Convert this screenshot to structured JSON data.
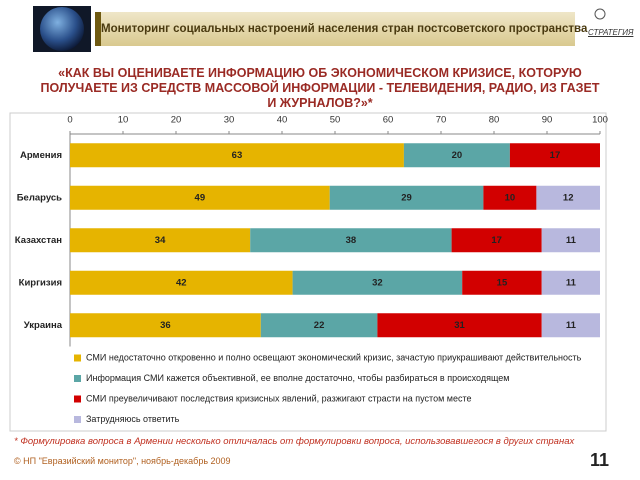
{
  "header": {
    "title": "Мониторинг социальных настроений населения стран постсоветского пространства",
    "logo": "СТРАТЕГИЯ"
  },
  "chart_data": {
    "type": "stacked-bar",
    "orientation": "horizontal",
    "title": "«КАК ВЫ ОЦЕНИВАЕТЕ ИНФОРМАЦИЮ ОБ ЭКОНОМИЧЕСКОМ КРИЗИСЕ, КОТОРУЮ ПОЛУЧАЕТЕ ИЗ СРЕДСТВ МАССОВОЙ ИНФОРМАЦИИ - ТЕЛЕВИДЕНИЯ, РАДИО, ИЗ ГАЗЕТ И ЖУРНАЛОВ?»*",
    "categories": [
      "Армения",
      "Беларусь",
      "Казахстан",
      "Киргизия",
      "Украина"
    ],
    "series": [
      {
        "name": "СМИ недостаточно откровенно и полно освещают экономический кризис, зачастую приукрашивают действительность",
        "color": "#e6b400",
        "values": [
          63,
          49,
          34,
          42,
          36
        ]
      },
      {
        "name": "Информация СМИ кажется объективной, ее вполне достаточно, чтобы разбираться в происходящем",
        "color": "#5ba6a6",
        "values": [
          20,
          29,
          38,
          32,
          22
        ]
      },
      {
        "name": "СМИ преувеличивают последствия кризисных явлений, разжигают страсти на пустом месте",
        "color": "#d20000",
        "values": [
          17,
          10,
          17,
          15,
          31
        ]
      },
      {
        "name": "Затрудняюсь ответить",
        "color": "#b8b8de",
        "values": [
          null,
          12,
          11,
          11,
          11
        ]
      }
    ],
    "xlim": [
      0,
      100
    ],
    "xticks": [
      0,
      10,
      20,
      30,
      40,
      50,
      60,
      70,
      80,
      90,
      100
    ]
  },
  "footnote": "* Формулировка вопроса в Армении несколько отличалась от формулировки вопроса, использовавшегося в других странах",
  "footer": "© НП \"Евразийский монитор\", ноябрь-декабрь 2009",
  "page_number": "11"
}
